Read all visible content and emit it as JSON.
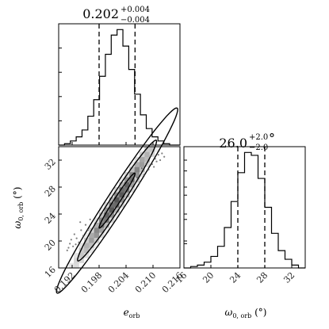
{
  "chart_data": [
    {
      "type": "histogram",
      "panel": "top-left",
      "parameter": "e_orb",
      "title": {
        "median": "0.202",
        "upper": "+0.004",
        "lower": "−0.004"
      },
      "quantiles": [
        0.198,
        0.202,
        0.206
      ],
      "xlim": [
        0.189,
        0.216
      ],
      "bins": [
        {
          "x0": 0.189,
          "x1": 0.1903,
          "count": 0
        },
        {
          "x0": 0.1903,
          "x1": 0.1916,
          "count": 1
        },
        {
          "x0": 0.1916,
          "x1": 0.1929,
          "count": 3
        },
        {
          "x0": 0.1929,
          "x1": 0.1942,
          "count": 6
        },
        {
          "x0": 0.1942,
          "x1": 0.1955,
          "count": 11
        },
        {
          "x0": 0.1955,
          "x1": 0.1968,
          "count": 21
        },
        {
          "x0": 0.1968,
          "x1": 0.1981,
          "count": 33
        },
        {
          "x0": 0.1981,
          "x1": 0.1994,
          "count": 50
        },
        {
          "x0": 0.1994,
          "x1": 0.2007,
          "count": 66
        },
        {
          "x0": 0.2007,
          "x1": 0.202,
          "count": 80
        },
        {
          "x0": 0.202,
          "x1": 0.2033,
          "count": 84
        },
        {
          "x0": 0.2033,
          "x1": 0.2046,
          "count": 72
        },
        {
          "x0": 0.2046,
          "x1": 0.2059,
          "count": 55
        },
        {
          "x0": 0.2059,
          "x1": 0.2072,
          "count": 37
        },
        {
          "x0": 0.2072,
          "x1": 0.2085,
          "count": 22
        },
        {
          "x0": 0.2085,
          "x1": 0.2098,
          "count": 12
        },
        {
          "x0": 0.2098,
          "x1": 0.2111,
          "count": 6
        },
        {
          "x0": 0.2111,
          "x1": 0.2124,
          "count": 3
        },
        {
          "x0": 0.2124,
          "x1": 0.2137,
          "count": 1
        },
        {
          "x0": 0.2137,
          "x1": 0.216,
          "count": 0
        }
      ]
    },
    {
      "type": "contour",
      "panel": "bottom-left",
      "xlabel": "e",
      "xlabel_sub": "orb",
      "ylabel": "ω",
      "ylabel_sub": "0, orb",
      "ylabel_unit": " (°)",
      "xlim": [
        0.189,
        0.216
      ],
      "ylim": [
        16,
        34
      ],
      "xticks": [
        "0.192",
        "0.198",
        "0.204",
        "0.210",
        "0.216"
      ],
      "yticks": [
        "16",
        "20",
        "24",
        "28",
        "32"
      ],
      "correlation": {
        "center": [
          0.202,
          26.0
        ],
        "slope": 1000,
        "levels": [
          {
            "along": 0.0135,
            "across": 2.6
          },
          {
            "along": 0.0088,
            "across": 1.7
          },
          {
            "along": 0.004,
            "across": 0.8
          }
        ]
      },
      "scatter": [
        [
          0.1915,
          19.6
        ],
        [
          0.1922,
          19.2
        ],
        [
          0.193,
          20.4
        ],
        [
          0.1925,
          21.0
        ],
        [
          0.1918,
          20.2
        ],
        [
          0.1935,
          19.8
        ],
        [
          0.1912,
          19.0
        ],
        [
          0.194,
          21.6
        ],
        [
          0.1928,
          19.5
        ],
        [
          0.1909,
          18.6
        ],
        [
          0.2105,
          32.2
        ],
        [
          0.2112,
          32.8
        ],
        [
          0.2098,
          31.4
        ],
        [
          0.212,
          33.0
        ],
        [
          0.2108,
          31.8
        ],
        [
          0.2095,
          32.6
        ],
        [
          0.2116,
          32.0
        ],
        [
          0.2102,
          31.0
        ],
        [
          0.2125,
          32.5
        ],
        [
          0.209,
          30.6
        ],
        [
          0.1945,
          20.8
        ],
        [
          0.2085,
          31.5
        ],
        [
          0.195,
          22.4
        ],
        [
          0.208,
          29.8
        ],
        [
          0.1955,
          21.6
        ],
        [
          0.2075,
          30.8
        ],
        [
          0.1938,
          22.8
        ],
        [
          0.2065,
          29.4
        ],
        [
          0.196,
          23.2
        ],
        [
          0.207,
          28.6
        ]
      ]
    },
    {
      "type": "histogram",
      "panel": "bottom-right",
      "parameter": "omega_0,orb",
      "title": {
        "median": "26.0",
        "upper": "+2.0",
        "lower": "−2.0",
        "unit": "°"
      },
      "xlabel": "ω",
      "xlabel_sub": "0, orb",
      "xlabel_unit": " (°)",
      "quantiles": [
        24.0,
        26.0,
        28.0
      ],
      "xlim": [
        16,
        34
      ],
      "xticks": [
        "16",
        "20",
        "24",
        "28",
        "32"
      ],
      "bins": [
        {
          "x0": 16.0,
          "x1": 17.0,
          "count": 0
        },
        {
          "x0": 17.0,
          "x1": 18.0,
          "count": 1
        },
        {
          "x0": 18.0,
          "x1": 19.0,
          "count": 2
        },
        {
          "x0": 19.0,
          "x1": 20.0,
          "count": 4
        },
        {
          "x0": 20.0,
          "x1": 21.0,
          "count": 8
        },
        {
          "x0": 21.0,
          "x1": 22.0,
          "count": 15
        },
        {
          "x0": 22.0,
          "x1": 23.0,
          "count": 28
        },
        {
          "x0": 23.0,
          "x1": 24.0,
          "count": 46
        },
        {
          "x0": 24.0,
          "x1": 25.0,
          "count": 66
        },
        {
          "x0": 25.0,
          "x1": 26.0,
          "count": 80
        },
        {
          "x0": 26.0,
          "x1": 27.0,
          "count": 78
        },
        {
          "x0": 27.0,
          "x1": 28.0,
          "count": 62
        },
        {
          "x0": 28.0,
          "x1": 29.0,
          "count": 42
        },
        {
          "x0": 29.0,
          "x1": 30.0,
          "count": 24
        },
        {
          "x0": 30.0,
          "x1": 31.0,
          "count": 12
        },
        {
          "x0": 31.0,
          "x1": 32.0,
          "count": 6
        },
        {
          "x0": 32.0,
          "x1": 33.0,
          "count": 2
        },
        {
          "x0": 33.0,
          "x1": 34.0,
          "count": 0
        }
      ]
    }
  ]
}
